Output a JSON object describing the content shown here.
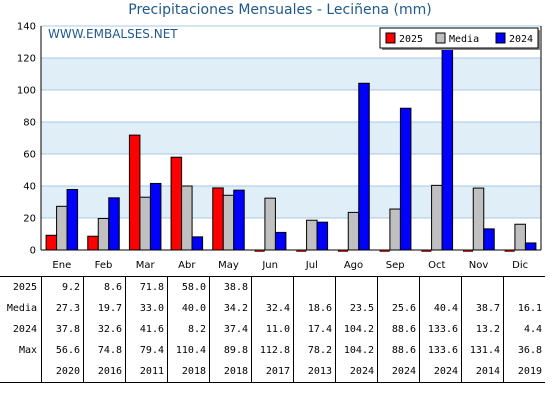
{
  "chart_data": {
    "type": "bar",
    "title": "Precipitaciones Mensuales - Leciñena (mm)",
    "watermark": "WWW.EMBALSES.NET",
    "categories": [
      "Ene",
      "Feb",
      "Mar",
      "Abr",
      "May",
      "Jun",
      "Jul",
      "Ago",
      "Sep",
      "Oct",
      "Nov",
      "Dic"
    ],
    "ylim": [
      0,
      140
    ],
    "yticks": [
      0,
      20,
      40,
      60,
      80,
      100,
      120,
      140
    ],
    "series": [
      {
        "name": "2025",
        "color": "#ff0000",
        "values": [
          9.2,
          8.6,
          71.8,
          58.0,
          38.8,
          null,
          null,
          null,
          null,
          null,
          null,
          null
        ]
      },
      {
        "name": "Media",
        "color": "#c0c0c0",
        "values": [
          27.3,
          19.7,
          33.0,
          40.0,
          34.2,
          32.4,
          18.6,
          23.5,
          25.6,
          40.4,
          38.7,
          16.1
        ]
      },
      {
        "name": "2024",
        "color": "#0000ff",
        "values": [
          37.8,
          32.6,
          41.6,
          8.2,
          37.4,
          11.0,
          17.4,
          104.2,
          88.6,
          133.6,
          13.2,
          4.4
        ]
      }
    ],
    "legend": [
      "2025",
      "Media",
      "2024"
    ],
    "legend_position": "top-right",
    "grid": true,
    "band_color": "#e0eef8"
  },
  "table": {
    "rows": [
      {
        "label": "2025",
        "values": [
          "9.2",
          "8.6",
          "71.8",
          "58.0",
          "38.8",
          "",
          "",
          "",
          "",
          "",
          "",
          ""
        ]
      },
      {
        "label": "Media",
        "values": [
          "27.3",
          "19.7",
          "33.0",
          "40.0",
          "34.2",
          "32.4",
          "18.6",
          "23.5",
          "25.6",
          "40.4",
          "38.7",
          "16.1"
        ]
      },
      {
        "label": "2024",
        "values": [
          "37.8",
          "32.6",
          "41.6",
          "8.2",
          "37.4",
          "11.0",
          "17.4",
          "104.2",
          "88.6",
          "133.6",
          "13.2",
          "4.4"
        ]
      },
      {
        "label": "Max",
        "values": [
          "56.6",
          "74.8",
          "79.4",
          "110.4",
          "89.8",
          "112.8",
          "78.2",
          "104.2",
          "88.6",
          "133.6",
          "131.4",
          "36.8"
        ]
      },
      {
        "label": "",
        "values": [
          "2020",
          "2016",
          "2011",
          "2018",
          "2018",
          "2017",
          "2013",
          "2024",
          "2024",
          "2024",
          "2014",
          "2019"
        ]
      }
    ]
  }
}
